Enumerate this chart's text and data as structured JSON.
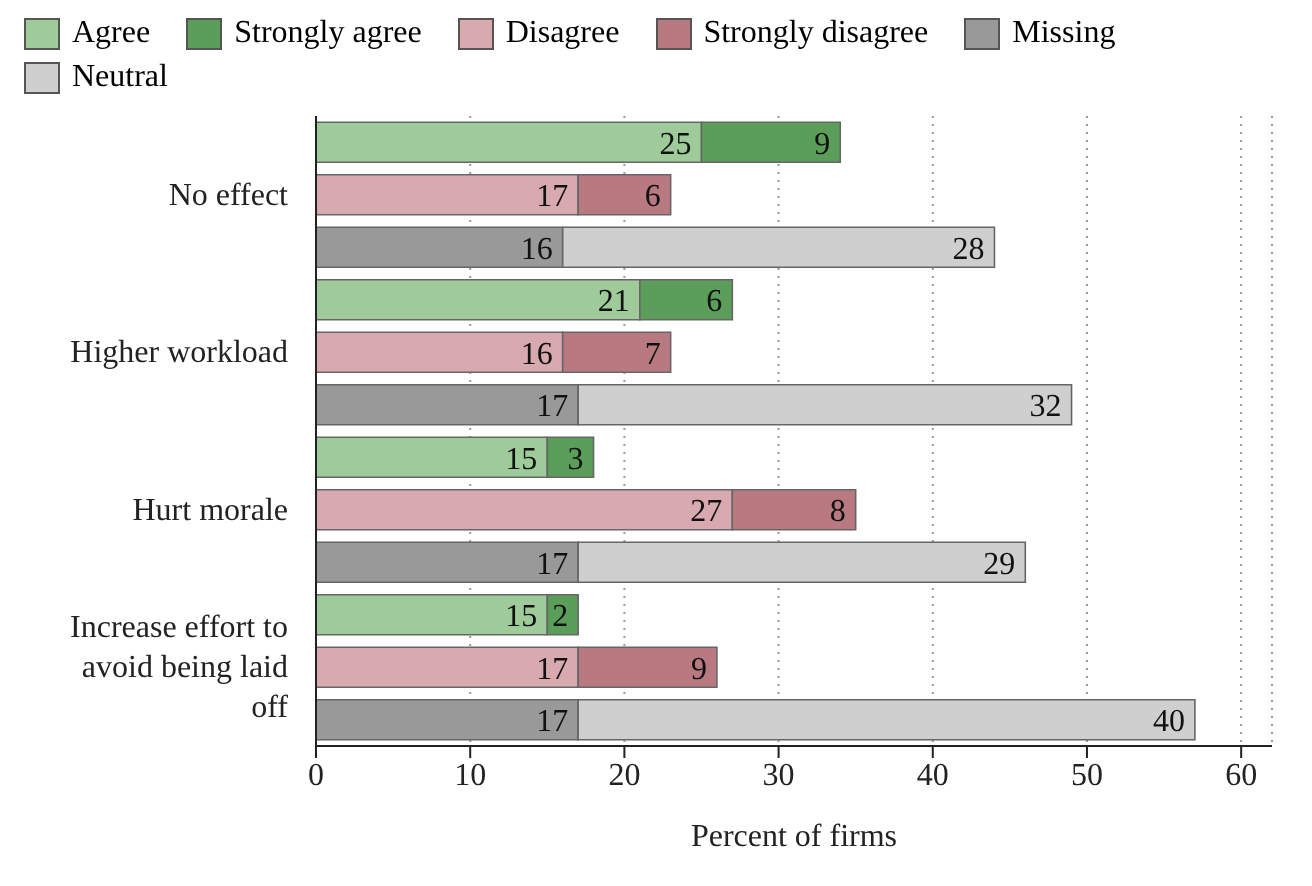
{
  "chart_data": {
    "type": "bar",
    "orientation": "horizontal",
    "stacked": true,
    "xlabel": "Percent of firms",
    "categories": [
      null,
      "No effect",
      null,
      null,
      "Higher workload",
      null,
      null,
      "Hurt morale",
      null,
      null,
      "Increase effort to avoid being laid off",
      null
    ],
    "series": [
      {
        "name": "Agree",
        "color": "#9fca9a",
        "values": [
          25,
          null,
          null,
          21,
          null,
          null,
          15,
          null,
          null,
          15,
          null,
          null
        ]
      },
      {
        "name": "Strongly agree",
        "color": "#5a9e5a",
        "values": [
          9,
          null,
          null,
          6,
          null,
          null,
          3,
          null,
          null,
          2,
          null,
          null
        ]
      },
      {
        "name": "Disagree",
        "color": "#d8a9ae",
        "values": [
          null,
          17,
          null,
          null,
          16,
          null,
          null,
          27,
          null,
          null,
          17,
          null
        ]
      },
      {
        "name": "Strongly disagree",
        "color": "#b87a80",
        "values": [
          null,
          6,
          null,
          null,
          7,
          null,
          null,
          8,
          null,
          null,
          9,
          null
        ]
      },
      {
        "name": "Missing",
        "color": "#999999",
        "values": [
          null,
          null,
          16,
          null,
          null,
          17,
          null,
          null,
          17,
          null,
          null,
          17
        ]
      },
      {
        "name": "Neutral",
        "color": "#cfcfcf",
        "values": [
          null,
          null,
          28,
          null,
          null,
          32,
          null,
          null,
          29,
          null,
          null,
          40
        ]
      }
    ],
    "xlim": [
      0,
      62
    ],
    "xticks": [
      0,
      10,
      20,
      30,
      40,
      50,
      60
    ],
    "grid": "x",
    "legend": "top",
    "data_labels": true
  }
}
